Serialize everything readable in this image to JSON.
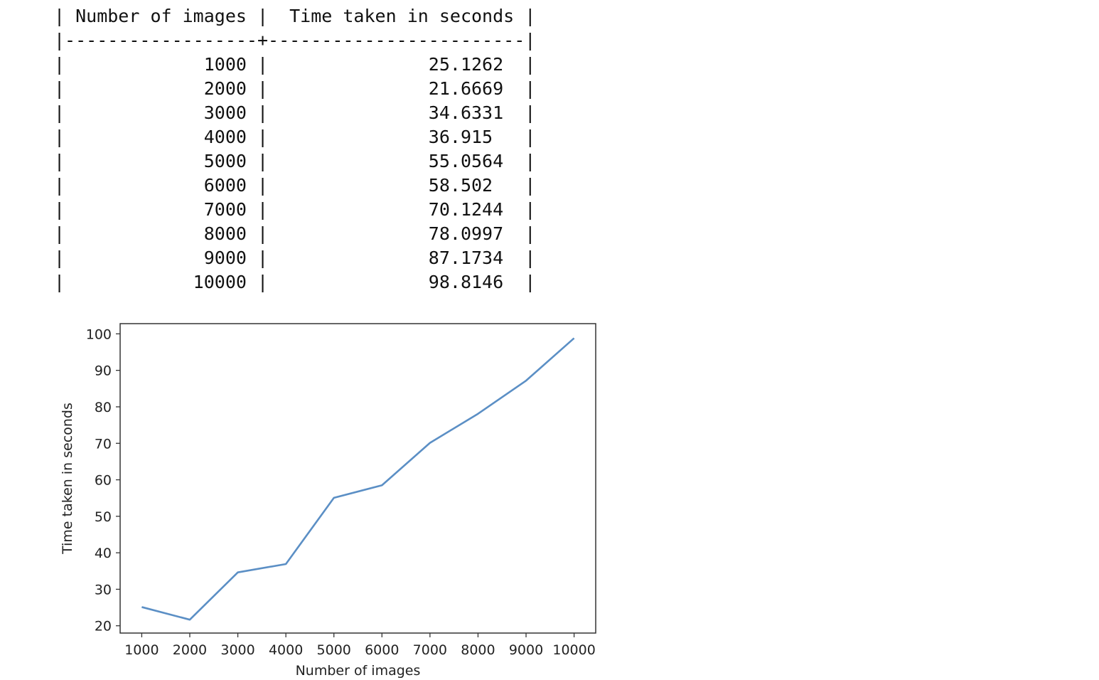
{
  "table": {
    "headers": [
      "Number of images",
      "Time taken in seconds"
    ],
    "rows": [
      [
        "1000",
        "25.1262"
      ],
      [
        "2000",
        "21.6669"
      ],
      [
        "3000",
        "34.6331"
      ],
      [
        "4000",
        "36.915"
      ],
      [
        "5000",
        "55.0564"
      ],
      [
        "6000",
        "58.502"
      ],
      [
        "7000",
        "70.1244"
      ],
      [
        "8000",
        "78.0997"
      ],
      [
        "9000",
        "87.1734"
      ],
      [
        "10000",
        "98.8146"
      ]
    ]
  },
  "chart_data": {
    "type": "line",
    "x": [
      1000,
      2000,
      3000,
      4000,
      5000,
      6000,
      7000,
      8000,
      9000,
      10000
    ],
    "series": [
      {
        "values": [
          25.1262,
          21.6669,
          34.6331,
          36.915,
          55.0564,
          58.502,
          70.1244,
          78.0997,
          87.1734,
          98.8146
        ]
      }
    ],
    "xlabel": "Number of images",
    "ylabel": "Time taken in seconds",
    "xticks": [
      1000,
      2000,
      3000,
      4000,
      5000,
      6000,
      7000,
      8000,
      9000,
      10000
    ],
    "yticks": [
      20,
      30,
      40,
      50,
      60,
      70,
      80,
      90,
      100
    ],
    "xlim": [
      550,
      10450
    ],
    "ylim": [
      18,
      102.8
    ],
    "grid": false,
    "line_color": "#5b8fc5"
  }
}
